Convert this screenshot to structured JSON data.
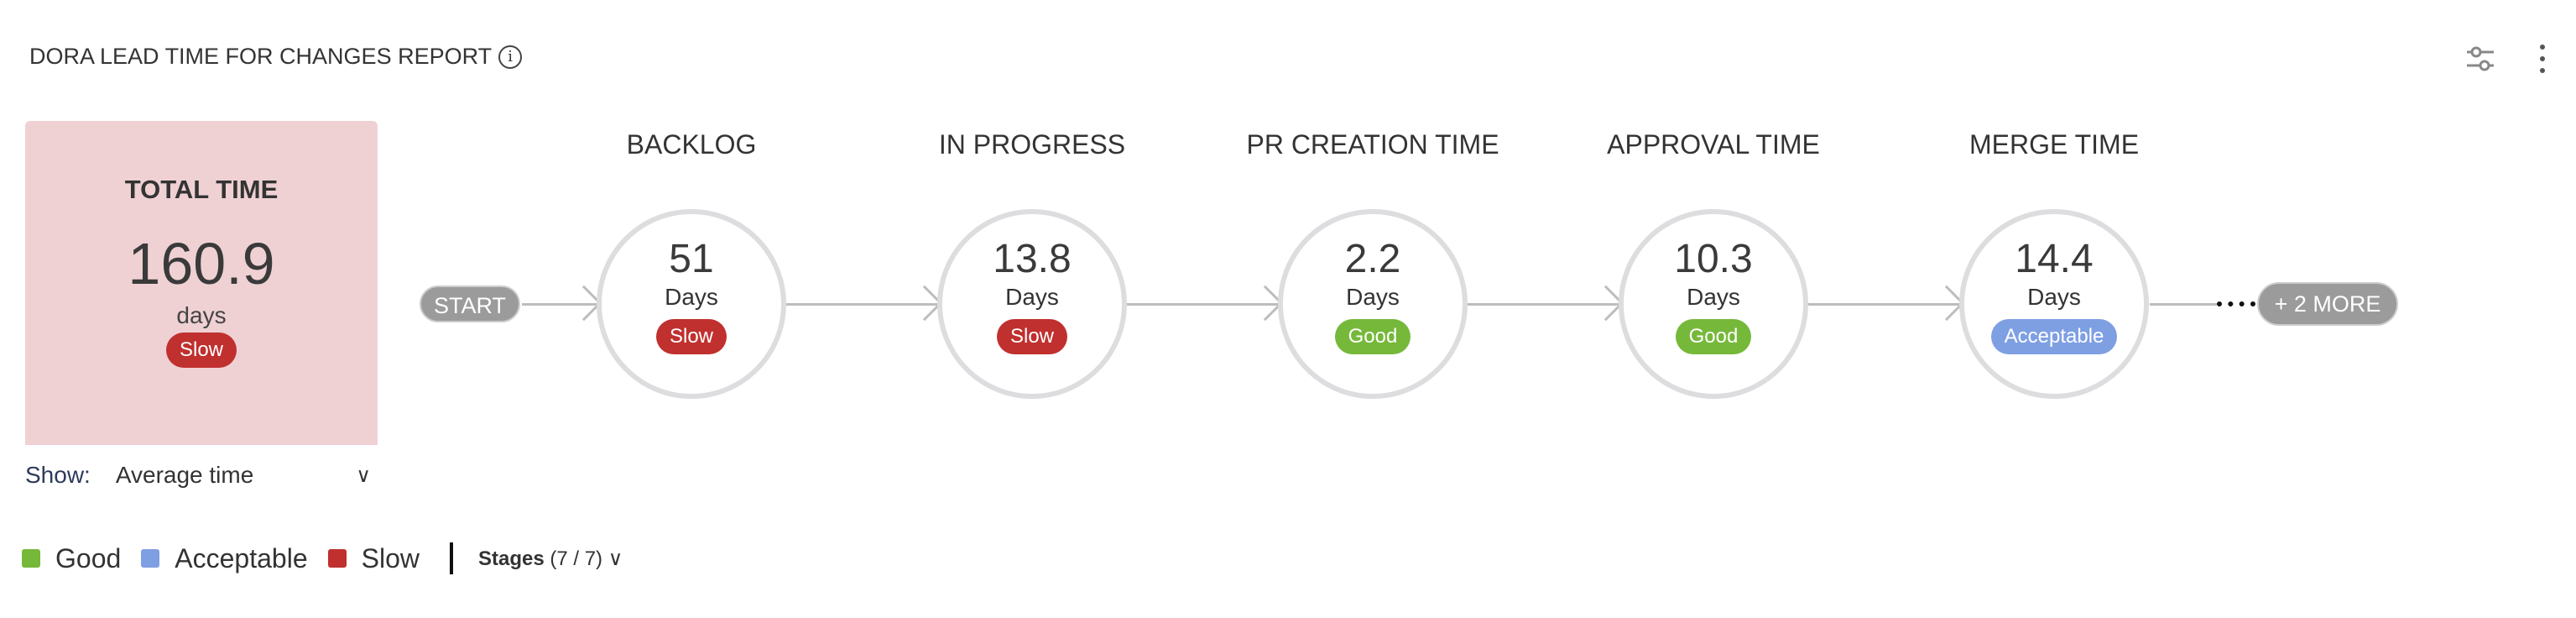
{
  "header": {
    "title": "DORA LEAD TIME FOR CHANGES REPORT",
    "info_icon": "info-icon",
    "actions": [
      "sliders-icon",
      "more-vertical-icon"
    ]
  },
  "total": {
    "label": "TOTAL TIME",
    "value": "160.9",
    "unit": "days",
    "status": "Slow"
  },
  "show": {
    "label": "Show:",
    "value": "Average time"
  },
  "start_label": "START",
  "stages": [
    {
      "name": "BACKLOG",
      "value": "51",
      "unit": "Days",
      "status": "Slow"
    },
    {
      "name": "IN PROGRESS",
      "value": "13.8",
      "unit": "Days",
      "status": "Slow"
    },
    {
      "name": "PR CREATION TIME",
      "value": "2.2",
      "unit": "Days",
      "status": "Good"
    },
    {
      "name": "APPROVAL TIME",
      "value": "10.3",
      "unit": "Days",
      "status": "Good"
    },
    {
      "name": "MERGE TIME",
      "value": "14.4",
      "unit": "Days",
      "status": "Acceptable"
    }
  ],
  "more_label": "+ 2 MORE",
  "legend": [
    {
      "label": "Good",
      "color": "#76b83a"
    },
    {
      "label": "Acceptable",
      "color": "#7f9fe3"
    },
    {
      "label": "Slow",
      "color": "#c0302e"
    }
  ],
  "stages_filter": {
    "label": "Stages",
    "count": "(7 / 7)"
  },
  "status_colors": {
    "Good": "#76b83a",
    "Acceptable": "#7f9fe3",
    "Slow": "#c0302e"
  }
}
